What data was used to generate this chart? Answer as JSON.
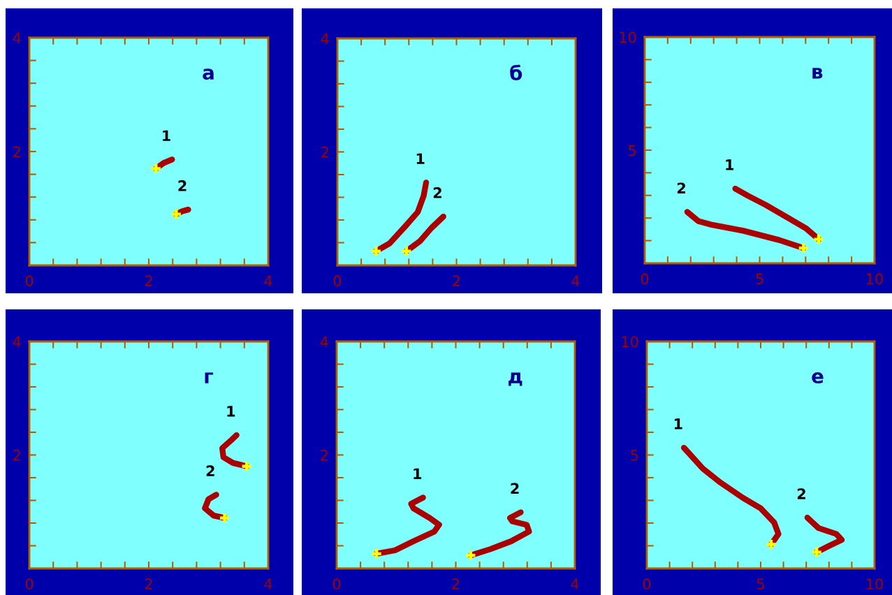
{
  "chart_data": [
    {
      "type": "line",
      "xlim": [
        0,
        4
      ],
      "ylim": [
        0,
        4
      ],
      "xticks": [
        0,
        {
          "value": 0.4,
          "label": null
        },
        {
          "value": 0.8,
          "label": null
        },
        {
          "value": 1.2,
          "label": null
        },
        {
          "value": 1.6,
          "label": null
        },
        2,
        {
          "value": 2.4,
          "label": null
        },
        {
          "value": 2.8,
          "label": null
        },
        {
          "value": 3.2,
          "label": null
        },
        {
          "value": 3.6,
          "label": null
        },
        4
      ],
      "yticks": [
        {
          "value": 0,
          "label": null
        },
        {
          "value": 0.4,
          "label": null
        },
        {
          "value": 0.8,
          "label": null
        },
        {
          "value": 1.2,
          "label": null
        },
        {
          "value": 1.6,
          "label": null
        },
        2,
        {
          "value": 2.4,
          "label": null
        },
        {
          "value": 2.8,
          "label": null
        },
        {
          "value": 3.2,
          "label": null
        },
        {
          "value": 3.6,
          "label": null
        },
        4
      ],
      "series": [
        {
          "name": "1",
          "color": "#aa0000",
          "x": [
            2.12,
            2.25,
            2.39
          ],
          "values": [
            1.7,
            1.8,
            1.86
          ]
        },
        {
          "name": "2",
          "color": "#aa0000",
          "x": [
            2.46,
            2.56,
            2.66
          ],
          "values": [
            0.9,
            0.95,
            0.98
          ]
        },
        {
          "type": "scatter",
          "marker": "cross",
          "color": "#ffff00",
          "x": [
            2.12,
            2.46
          ],
          "values": [
            1.7,
            0.9
          ]
        }
      ],
      "annotations": [
        "а"
      ]
    },
    {
      "type": "line",
      "xlim": [
        0,
        4
      ],
      "ylim": [
        0,
        4
      ],
      "xticks": [
        0,
        {
          "value": 0.4,
          "label": null
        },
        {
          "value": 0.8,
          "label": null
        },
        {
          "value": 1.2,
          "label": null
        },
        {
          "value": 1.6,
          "label": null
        },
        2,
        {
          "value": 2.4,
          "label": null
        },
        {
          "value": 2.8,
          "label": null
        },
        {
          "value": 3.2,
          "label": null
        },
        {
          "value": 3.6,
          "label": null
        },
        4
      ],
      "yticks": [
        {
          "value": 0,
          "label": null
        },
        {
          "value": 0.4,
          "label": null
        },
        {
          "value": 0.8,
          "label": null
        },
        {
          "value": 1.2,
          "label": null
        },
        {
          "value": 1.6,
          "label": null
        },
        2,
        {
          "value": 2.4,
          "label": null
        },
        {
          "value": 2.8,
          "label": null
        },
        {
          "value": 3.2,
          "label": null
        },
        {
          "value": 3.6,
          "label": null
        },
        4
      ],
      "series": [
        {
          "name": "1",
          "color": "#aa0000",
          "x": [
            0.65,
            0.88,
            1.15,
            1.35,
            1.45,
            1.49
          ],
          "values": [
            0.25,
            0.39,
            0.7,
            0.94,
            1.23,
            1.46
          ]
        },
        {
          "name": "2",
          "color": "#aa0000",
          "x": [
            1.16,
            1.39,
            1.58,
            1.78
          ],
          "values": [
            0.25,
            0.43,
            0.66,
            0.86
          ]
        },
        {
          "type": "scatter",
          "marker": "cross",
          "color": "#ffff00",
          "x": [
            0.65,
            1.16
          ],
          "values": [
            0.25,
            0.25
          ]
        }
      ],
      "annotations": [
        "б"
      ]
    },
    {
      "type": "line",
      "xlim": [
        0,
        10
      ],
      "ylim": [
        0,
        10
      ],
      "xticks": [
        0,
        {
          "value": 1,
          "label": null
        },
        {
          "value": 2,
          "label": null
        },
        {
          "value": 3,
          "label": null
        },
        {
          "value": 4,
          "label": null
        },
        5,
        {
          "value": 6,
          "label": null
        },
        {
          "value": 7,
          "label": null
        },
        {
          "value": 8,
          "label": null
        },
        {
          "value": 9,
          "label": null
        },
        10
      ],
      "yticks": [
        {
          "value": 0,
          "label": null
        },
        {
          "value": 1,
          "label": null
        },
        {
          "value": 2,
          "label": null
        },
        {
          "value": 3,
          "label": null
        },
        {
          "value": 4,
          "label": null
        },
        5,
        {
          "value": 6,
          "label": null
        },
        {
          "value": 7,
          "label": null
        },
        {
          "value": 8,
          "label": null
        },
        {
          "value": 9,
          "label": null
        },
        10
      ],
      "series": [
        {
          "name": "1",
          "color": "#aa0000",
          "x": [
            7.57,
            7.01,
            6.23,
            5.26,
            4.48,
            3.94
          ],
          "values": [
            1.06,
            1.55,
            2.01,
            2.58,
            2.99,
            3.3
          ]
        },
        {
          "name": "2",
          "color": "#aa0000",
          "x": [
            6.91,
            5.84,
            4.28,
            2.92,
            2.34,
            1.85
          ],
          "values": [
            0.67,
            1.03,
            1.44,
            1.7,
            1.86,
            2.27
          ]
        },
        {
          "type": "scatter",
          "marker": "cross",
          "color": "#ffff00",
          "x": [
            7.57,
            6.91
          ],
          "values": [
            1.06,
            0.67
          ]
        }
      ],
      "annotations": [
        "в"
      ]
    },
    {
      "type": "line",
      "xlim": [
        0,
        4
      ],
      "ylim": [
        0,
        4
      ],
      "xticks": [
        0,
        {
          "value": 0.4,
          "label": null
        },
        {
          "value": 0.8,
          "label": null
        },
        {
          "value": 1.2,
          "label": null
        },
        {
          "value": 1.6,
          "label": null
        },
        2,
        {
          "value": 2.4,
          "label": null
        },
        {
          "value": 2.8,
          "label": null
        },
        {
          "value": 3.2,
          "label": null
        },
        {
          "value": 3.6,
          "label": null
        },
        4
      ],
      "yticks": [
        {
          "value": 0,
          "label": null
        },
        {
          "value": 0.4,
          "label": null
        },
        {
          "value": 0.8,
          "label": null
        },
        {
          "value": 1.2,
          "label": null
        },
        {
          "value": 1.6,
          "label": null
        },
        2,
        {
          "value": 2.4,
          "label": null
        },
        {
          "value": 2.8,
          "label": null
        },
        {
          "value": 3.2,
          "label": null
        },
        {
          "value": 3.6,
          "label": null
        },
        4
      ],
      "series": [
        {
          "name": "1",
          "color": "#aa0000",
          "x": [
            3.64,
            3.41,
            3.25,
            3.23,
            3.37,
            3.47
          ],
          "values": [
            1.8,
            1.86,
            1.96,
            2.12,
            2.25,
            2.35
          ]
        },
        {
          "name": "2",
          "color": "#aa0000",
          "x": [
            3.27,
            3.09,
            2.94,
            3.0,
            3.13
          ],
          "values": [
            0.89,
            0.93,
            1.06,
            1.22,
            1.3
          ]
        },
        {
          "type": "scatter",
          "marker": "cross",
          "color": "#ffff00",
          "x": [
            3.64,
            3.27
          ],
          "values": [
            1.8,
            0.89
          ]
        }
      ],
      "annotations": [
        "г"
      ]
    },
    {
      "type": "line",
      "xlim": [
        0,
        4
      ],
      "ylim": [
        0,
        4
      ],
      "xticks": [
        0,
        {
          "value": 0.4,
          "label": null
        },
        {
          "value": 0.8,
          "label": null
        },
        {
          "value": 1.2,
          "label": null
        },
        {
          "value": 1.6,
          "label": null
        },
        2,
        {
          "value": 2.4,
          "label": null
        },
        {
          "value": 2.8,
          "label": null
        },
        {
          "value": 3.2,
          "label": null
        },
        {
          "value": 3.6,
          "label": null
        },
        4
      ],
      "yticks": [
        {
          "value": 0,
          "label": null
        },
        {
          "value": 0.4,
          "label": null
        },
        {
          "value": 0.8,
          "label": null
        },
        {
          "value": 1.2,
          "label": null
        },
        {
          "value": 1.6,
          "label": null
        },
        2,
        {
          "value": 2.4,
          "label": null
        },
        {
          "value": 2.8,
          "label": null
        },
        {
          "value": 3.2,
          "label": null
        },
        {
          "value": 3.6,
          "label": null
        },
        4
      ],
      "series": [
        {
          "name": "1",
          "color": "#aa0000",
          "x": [
            0.67,
            0.98,
            1.29,
            1.64,
            1.72,
            1.56,
            1.29,
            1.25,
            1.45
          ],
          "values": [
            0.26,
            0.32,
            0.48,
            0.65,
            0.77,
            0.89,
            1.06,
            1.14,
            1.25
          ]
        },
        {
          "name": "2",
          "color": "#aa0000",
          "x": [
            2.25,
            2.58,
            2.93,
            3.23,
            3.19,
            2.95,
            2.91,
            3.09
          ],
          "values": [
            0.23,
            0.34,
            0.48,
            0.65,
            0.77,
            0.83,
            0.89,
            0.99
          ]
        },
        {
          "type": "scatter",
          "marker": "cross",
          "color": "#ffff00",
          "x": [
            0.67,
            2.25
          ],
          "values": [
            0.26,
            0.23
          ]
        }
      ],
      "annotations": [
        "д"
      ]
    },
    {
      "type": "line",
      "xlim": [
        0,
        10
      ],
      "ylim": [
        0,
        10
      ],
      "xticks": [
        0,
        {
          "value": 1,
          "label": null
        },
        {
          "value": 2,
          "label": null
        },
        {
          "value": 3,
          "label": null
        },
        {
          "value": 4,
          "label": null
        },
        5,
        {
          "value": 6,
          "label": null
        },
        {
          "value": 7,
          "label": null
        },
        {
          "value": 8,
          "label": null
        },
        {
          "value": 9,
          "label": null
        },
        10
      ],
      "yticks": [
        {
          "value": 0,
          "label": null
        },
        {
          "value": 1,
          "label": null
        },
        {
          "value": 2,
          "label": null
        },
        {
          "value": 3,
          "label": null
        },
        {
          "value": 4,
          "label": null
        },
        5,
        {
          "value": 6,
          "label": null
        },
        {
          "value": 7,
          "label": null
        },
        {
          "value": 8,
          "label": null
        },
        {
          "value": 9,
          "label": null
        },
        10
      ],
      "series": [
        {
          "name": "1",
          "color": "#aa0000",
          "x": [
            5.46,
            5.78,
            5.59,
            5.0,
            4.22,
            3.24,
            2.46,
            1.63
          ],
          "values": [
            1.06,
            1.52,
            2.03,
            2.65,
            3.11,
            3.78,
            4.4,
            5.32
          ]
        },
        {
          "name": "2",
          "color": "#aa0000",
          "x": [
            7.46,
            8.03,
            8.56,
            8.32,
            7.54,
            7.05
          ],
          "values": [
            0.72,
            1.01,
            1.26,
            1.52,
            1.78,
            2.24
          ]
        },
        {
          "type": "scatter",
          "marker": "cross",
          "color": "#ffff00",
          "x": [
            5.46,
            7.46
          ],
          "values": [
            1.06,
            0.72
          ]
        }
      ],
      "annotations": [
        "е"
      ]
    }
  ]
}
